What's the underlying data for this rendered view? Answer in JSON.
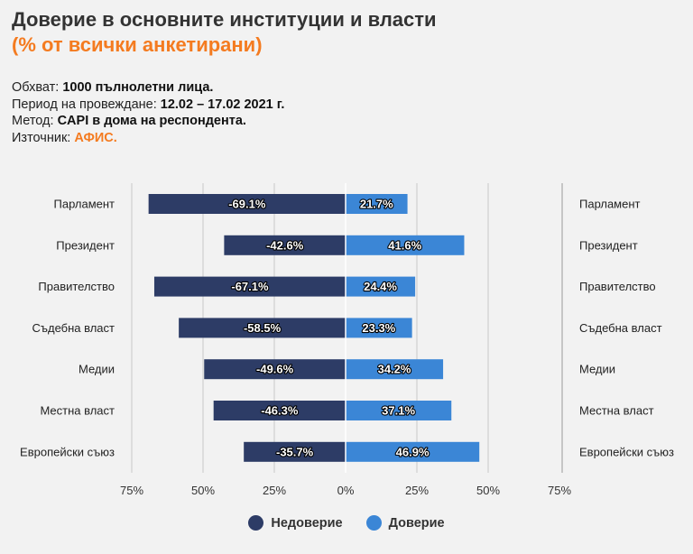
{
  "header": {
    "title": "Доверие в основните институции и власти",
    "subtitle": "(% от всички анкетирани)"
  },
  "meta": [
    {
      "label": "Обхват: ",
      "value": "1000 пълнолетни лица.",
      "accent": false
    },
    {
      "label": "Период на провеждане: ",
      "value": "12.02 – 17.02 2021 г.",
      "accent": false
    },
    {
      "label": "Метод: ",
      "value": "CAPI в дома на респондента.",
      "accent": false
    },
    {
      "label": "Източник: ",
      "value": "АФИС.",
      "accent": true
    }
  ],
  "colors": {
    "distrust": "#2d3c66",
    "trust": "#3b86d6",
    "accent": "#f47b20",
    "grid": "#c8c8c8"
  },
  "chart_data": {
    "type": "bar",
    "orientation": "horizontal-diverging",
    "categories": [
      "Парламент",
      "Президент",
      "Правителство",
      "Съдебна власт",
      "Медии",
      "Местна власт",
      "Европейски съюз"
    ],
    "series": [
      {
        "name": "Недоверие",
        "key": "distrust",
        "values": [
          -69.1,
          -42.6,
          -67.1,
          -58.5,
          -49.6,
          -46.3,
          -35.7
        ]
      },
      {
        "name": "Доверие",
        "key": "trust",
        "values": [
          21.7,
          41.6,
          24.4,
          23.3,
          34.2,
          37.1,
          46.9
        ]
      }
    ],
    "xlim": [
      -75,
      75
    ],
    "xticks": [
      -75,
      -50,
      -25,
      0,
      25,
      50,
      75
    ],
    "xtick_labels": [
      "75%",
      "50%",
      "25%",
      "0%",
      "25%",
      "50%",
      "75%"
    ],
    "value_suffix": "%",
    "legend_position": "bottom"
  }
}
